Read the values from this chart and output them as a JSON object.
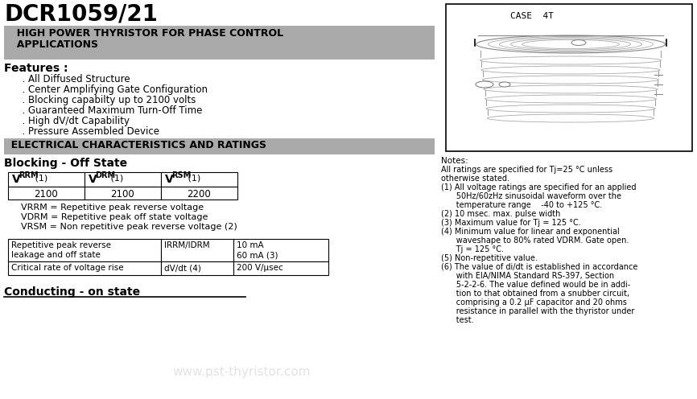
{
  "title": "DCR1059/21",
  "subtitle_line1": "  HIGH POWER THYRISTOR FOR PHASE CONTROL",
  "subtitle_line2": "  APPLICATIONS",
  "features_label": "Features :",
  "features": [
    "      . All Diffused Structure",
    "      . Center Amplifying Gate Configuration",
    "      . Blocking capabilty up to 2100 volts",
    "      . Guaranteed Maximum Turn-Off Time",
    "      . High dV/dt Capability",
    "      . Pressure Assembled Device"
  ],
  "section1": "  ELECTRICAL CHARACTERISTICS AND RATINGS",
  "blocking_title": "Blocking - Off State",
  "table1_headers": [
    "VRRM (1)",
    "VDRM (1)",
    "VRSM (1)"
  ],
  "table1_values": [
    "2100",
    "2100",
    "2200"
  ],
  "def1": "      VRRM = Repetitive peak reverse voltage",
  "def2": "      VDRM = Repetitive peak off state voltage",
  "def3": "      VRSM = Non repetitive peak reverse voltage (2)",
  "table2_r0c0": "Repetitive peak reverse\nleakage and off state",
  "table2_r0c1": "IRRM/IDRM",
  "table2_r0c2": "10 mA\n60 mA (3)",
  "table2_r1c0": "Critical rate of voltage rise",
  "table2_r1c1": "dV/dt (4)",
  "table2_r1c2": "200 V/μsec",
  "conducting_title": "Conducting - on state",
  "case_label": "CASE  4T",
  "notes_title": "Notes:",
  "note0": "All ratings are specified for Tj=25 °C unless",
  "note1": "otherwise stated.",
  "note2": "(1) All voltage ratings are specified for an applied",
  "note3": "      50Hz/60zHz sinusoidal waveform over the",
  "note4": "      temperature range    -40 to +125 °C.",
  "note5": "(2) 10 msec. max. pulse width",
  "note6": "(3) Maximum value for Tj = 125 °C.",
  "note7": "(4) Minimum value for linear and exponential",
  "note8": "      waveshape to 80% rated VDRM. Gate open.",
  "note9": "      Tj = 125 °C.",
  "note10": "(5) Non-repetitive value.",
  "note11": "(6) The value of di/dt is established in accordance",
  "note12": "      with EIA/NIMA Standard RS-397, Section",
  "note13": "      5-2-2-6. The value defined would be in addi-",
  "note14": "      tion to that obtained from a snubber circuit,",
  "note15": "      comprising a 0.2 μF capacitor and 20 ohms",
  "note16": "      resistance in parallel with the thyristor under",
  "note17": "      test.",
  "watermark": "www.pst-thyristor.com",
  "bg_color": "#ffffff",
  "header_bg": "#aaaaaa",
  "section_bg": "#aaaaaa"
}
